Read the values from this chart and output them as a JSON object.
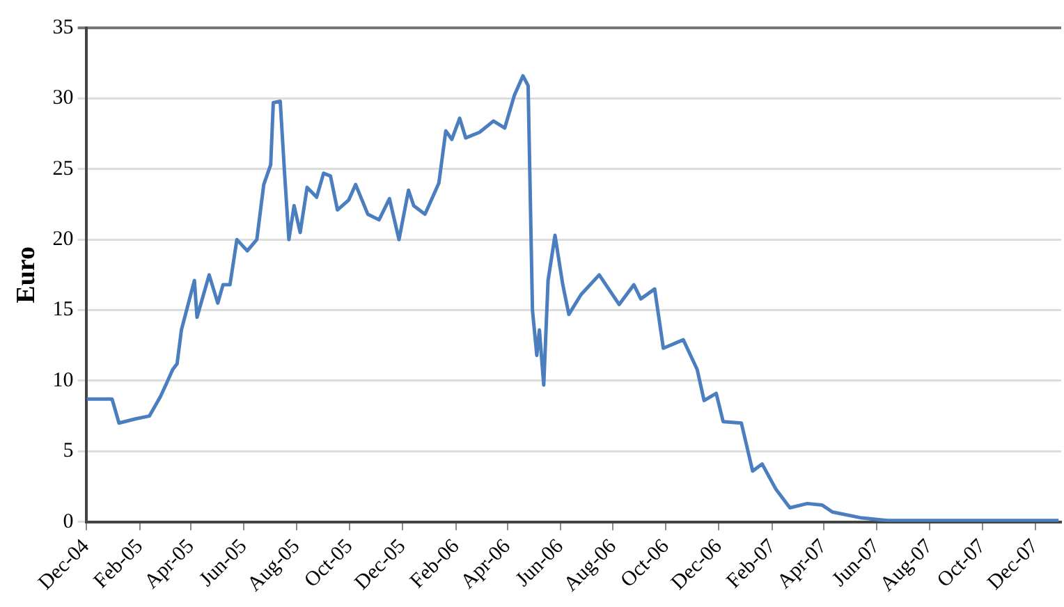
{
  "chart_data": {
    "type": "line",
    "ylabel": "Euro",
    "xlim": [
      "2004-12-01",
      "2007-12-31"
    ],
    "ylim": [
      0,
      35
    ],
    "yticks": [
      0,
      5,
      10,
      15,
      20,
      25,
      30,
      35
    ],
    "xticks": [
      {
        "value": "2004-12-01",
        "label": "Dec-04"
      },
      {
        "value": "2005-02-01",
        "label": "Feb-05"
      },
      {
        "value": "2005-04-01",
        "label": "Apr-05"
      },
      {
        "value": "2005-06-01",
        "label": "Jun-05"
      },
      {
        "value": "2005-08-01",
        "label": "Aug-05"
      },
      {
        "value": "2005-10-01",
        "label": "Oct-05"
      },
      {
        "value": "2005-12-01",
        "label": "Dec-05"
      },
      {
        "value": "2006-02-01",
        "label": "Feb-06"
      },
      {
        "value": "2006-04-01",
        "label": "Apr-06"
      },
      {
        "value": "2006-06-01",
        "label": "Jun-06"
      },
      {
        "value": "2006-08-01",
        "label": "Aug-06"
      },
      {
        "value": "2006-10-01",
        "label": "Oct-06"
      },
      {
        "value": "2006-12-01",
        "label": "Dec-06"
      },
      {
        "value": "2007-02-01",
        "label": "Feb-07"
      },
      {
        "value": "2007-04-01",
        "label": "Apr-07"
      },
      {
        "value": "2007-06-01",
        "label": "Jun-07"
      },
      {
        "value": "2007-08-01",
        "label": "Aug-07"
      },
      {
        "value": "2007-10-01",
        "label": "Oct-07"
      },
      {
        "value": "2007-12-01",
        "label": "Dec-07"
      }
    ],
    "grid": "y",
    "marker": "none",
    "line_style": "solid",
    "series": [
      {
        "color": "#4a7ebf",
        "x": [
          "2004-12-02",
          "2004-12-31",
          "2005-01-08",
          "2005-01-27",
          "2005-02-12",
          "2005-02-25",
          "2005-03-03",
          "2005-03-11",
          "2005-03-16",
          "2005-03-21",
          "2005-04-05",
          "2005-04-08",
          "2005-04-22",
          "2005-05-02",
          "2005-05-08",
          "2005-05-16",
          "2005-05-24",
          "2005-06-05",
          "2005-06-16",
          "2005-06-24",
          "2005-07-02",
          "2005-07-05",
          "2005-07-13",
          "2005-07-18",
          "2005-07-23",
          "2005-07-29",
          "2005-08-05",
          "2005-08-13",
          "2005-08-24",
          "2005-09-01",
          "2005-09-09",
          "2005-09-17",
          "2005-09-30",
          "2005-10-08",
          "2005-10-22",
          "2005-11-04",
          "2005-11-16",
          "2005-11-27",
          "2005-12-08",
          "2005-12-14",
          "2005-12-27",
          "2006-01-12",
          "2006-01-20",
          "2006-01-27",
          "2006-02-05",
          "2006-02-12",
          "2006-02-28",
          "2006-03-16",
          "2006-03-29",
          "2006-04-09",
          "2006-04-19",
          "2006-04-25",
          "2006-04-30",
          "2006-05-05",
          "2006-05-08",
          "2006-05-13",
          "2006-05-18",
          "2006-05-26",
          "2006-06-04",
          "2006-06-11",
          "2006-06-25",
          "2006-07-16",
          "2006-08-08",
          "2006-08-25",
          "2006-09-02",
          "2006-09-18",
          "2006-09-28",
          "2006-10-21",
          "2006-11-06",
          "2006-11-14",
          "2006-11-28",
          "2006-12-06",
          "2006-12-27",
          "2007-01-09",
          "2007-01-20",
          "2007-02-05",
          "2007-02-21",
          "2007-03-13",
          "2007-03-30",
          "2007-04-11",
          "2007-05-13",
          "2007-06-14",
          "2007-12-28"
        ],
        "values": [
          8.7,
          8.7,
          7.0,
          7.3,
          7.5,
          8.9,
          9.7,
          10.8,
          11.2,
          13.6,
          17.1,
          14.5,
          17.5,
          15.5,
          16.8,
          16.8,
          20.0,
          19.2,
          20.0,
          23.9,
          25.3,
          29.7,
          29.8,
          24.7,
          20.0,
          22.4,
          20.5,
          23.7,
          23.0,
          24.7,
          24.5,
          22.1,
          22.8,
          23.9,
          21.8,
          21.4,
          22.9,
          20.0,
          23.5,
          22.4,
          21.8,
          24.0,
          27.7,
          27.1,
          28.6,
          27.2,
          27.6,
          28.4,
          27.9,
          30.2,
          31.6,
          30.9,
          15.0,
          11.8,
          13.6,
          9.7,
          17.1,
          20.3,
          16.8,
          14.7,
          16.1,
          17.5,
          15.4,
          16.8,
          15.8,
          16.5,
          12.3,
          12.9,
          10.8,
          8.6,
          9.1,
          7.1,
          7.0,
          3.6,
          4.1,
          2.3,
          1.0,
          1.3,
          1.2,
          0.7,
          0.3,
          0.1,
          0.1
        ]
      }
    ]
  }
}
